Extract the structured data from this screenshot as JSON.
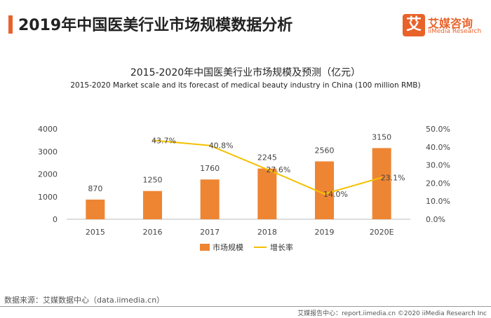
{
  "header": {
    "title": "2019年中国医美行业市场规模数据分析",
    "logo_char": "艾",
    "logo_cn": "艾媒咨询",
    "logo_en": "iiMedia Research",
    "accent_color": "#e8622a"
  },
  "footer": {
    "source": "数据来源：艾媒数据中心（data.iimedia.cn）",
    "copyright": "艾媒报告中心：report.iimedia.cn  ©2020  iiMedia Research  Inc"
  },
  "chart_data": {
    "type": "bar",
    "title": "2015-2020年中国医美行业市场规模及预测（亿元）",
    "subtitle": "2015-2020 Market scale and its forecast of medical beauty industry in China (100 million RMB)",
    "categories": [
      "2015",
      "2016",
      "2017",
      "2018",
      "2019",
      "2020E"
    ],
    "ylim": [
      0,
      4000
    ],
    "yticks": [
      "0",
      "1000",
      "2000",
      "3000",
      "4000"
    ],
    "y2lim": [
      0,
      50
    ],
    "y2ticks": [
      "0.0%",
      "10.0%",
      "20.0%",
      "30.0%",
      "40.0%",
      "50.0%"
    ],
    "legend_position": "bottom",
    "grid": false,
    "series": [
      {
        "name": "市场规模",
        "kind": "bar",
        "axis": "left",
        "color": "#ee8533",
        "values": [
          870,
          1250,
          1760,
          2245,
          2560,
          3150
        ],
        "labels": [
          "870",
          "1250",
          "1760",
          "2245",
          "2560",
          "3150"
        ]
      },
      {
        "name": "增长率",
        "kind": "line",
        "axis": "right",
        "color": "#f5c000",
        "values": [
          null,
          43.7,
          40.8,
          27.6,
          14.0,
          23.1
        ],
        "labels": [
          "",
          "43.7%",
          "40.8%",
          "27.6%",
          "14.0%",
          "23.1%"
        ]
      }
    ]
  }
}
